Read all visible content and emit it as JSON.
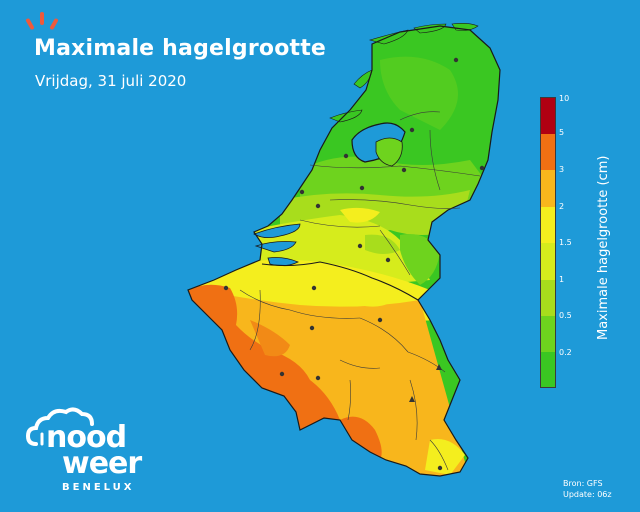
{
  "header": {
    "title": "Maximale hagelgrootte",
    "subtitle": "Vrijdag, 31 juli 2020"
  },
  "legend": {
    "label": "Maximale hagelgrootte (cm)",
    "ticks": [
      "10",
      "5",
      "3",
      "2",
      "1.5",
      "1",
      "0.5",
      "0.2"
    ],
    "colors": [
      "#b00012",
      "#f07013",
      "#f8b61c",
      "#f4ee1e",
      "#d6ec1c",
      "#a8dd1c",
      "#6ed31e",
      "#3ac722"
    ]
  },
  "source": {
    "line1": "Bron: GFS",
    "line2": "Update: 06z"
  },
  "logo": {
    "word1": "nood",
    "word2": "weer",
    "word3": "BENELUX"
  }
}
